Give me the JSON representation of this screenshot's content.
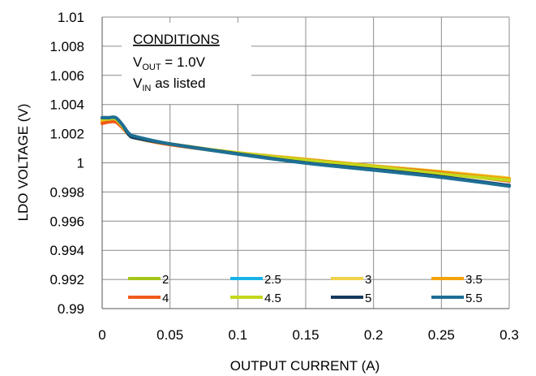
{
  "chart_data": {
    "type": "line",
    "title": "",
    "xlabel": "OUTPUT CURRENT (A)",
    "ylabel": "LDO VOLTAGE (V)",
    "xlim": [
      0,
      0.3
    ],
    "ylim": [
      0.99,
      1.01
    ],
    "x_ticks": [
      "0",
      "0.05",
      "0.1",
      "0.15",
      "0.2",
      "0.25",
      "0.3"
    ],
    "y_ticks": [
      "0.99",
      "0.992",
      "0.994",
      "0.996",
      "0.998",
      "1",
      "1.002",
      "1.004",
      "1.006",
      "1.008",
      "1.01"
    ],
    "grid": true,
    "legend_placement": "bottom, inside plot",
    "annotation": {
      "heading": "CONDITIONS",
      "line1_main": "V",
      "line1_sub": "OUT",
      "line1_rest": " = 1.0V",
      "line2_main": "V",
      "line2_sub": "IN",
      "line2_rest": " as listed"
    },
    "x": [
      0,
      0.005,
      0.01,
      0.015,
      0.02,
      0.025,
      0.05,
      0.1,
      0.15,
      0.2,
      0.25,
      0.3
    ],
    "series": [
      {
        "name": "2",
        "color": "#a4c618",
        "values": [
          1.0029,
          1.0029,
          1.0029,
          1.0025,
          1.0019,
          1.0017,
          1.00125,
          1.00065,
          1.00022,
          0.99975,
          0.99935,
          0.9989
        ]
      },
      {
        "name": "2.5",
        "color": "#1ab2e6",
        "values": [
          1.0029,
          1.0029,
          1.0029,
          1.0025,
          1.0019,
          1.0017,
          1.00125,
          1.00065,
          1.0002,
          0.99972,
          0.99932,
          0.99888
        ]
      },
      {
        "name": "3",
        "color": "#f0d24a",
        "values": [
          1.0029,
          1.0029,
          1.0029,
          1.0025,
          1.0019,
          1.0017,
          1.00125,
          1.0007,
          1.00025,
          0.9998,
          0.9994,
          0.99895
        ]
      },
      {
        "name": "3.5",
        "color": "#f4a20c",
        "values": [
          1.0028,
          1.0029,
          1.0029,
          1.0025,
          1.0019,
          1.0017,
          1.00125,
          1.00068,
          1.00022,
          0.99978,
          0.99935,
          0.9989
        ]
      },
      {
        "name": "4",
        "color": "#f05a1a",
        "values": [
          1.0027,
          1.0028,
          1.0028,
          1.0024,
          1.0019,
          1.0017,
          1.00125,
          1.00066,
          1.0002,
          0.99975,
          0.9993,
          0.99875
        ]
      },
      {
        "name": "4.5",
        "color": "#c3d81c",
        "values": [
          1.003,
          1.003,
          1.003,
          1.0025,
          1.0019,
          1.0017,
          1.0013,
          1.00068,
          1.00018,
          0.99975,
          0.99925,
          0.9988
        ]
      },
      {
        "name": "5",
        "color": "#163a5e",
        "values": [
          1.0031,
          1.0031,
          1.0031,
          1.0026,
          1.0019,
          1.0017,
          1.0013,
          1.00062,
          1.0,
          0.99955,
          0.99905,
          0.99845
        ]
      },
      {
        "name": "5.5",
        "color": "#1e6f94",
        "values": [
          1.0031,
          1.0031,
          1.0031,
          1.0026,
          1.002,
          1.0018,
          1.0013,
          1.0006,
          0.99998,
          0.9995,
          0.999,
          0.9984
        ]
      }
    ]
  }
}
